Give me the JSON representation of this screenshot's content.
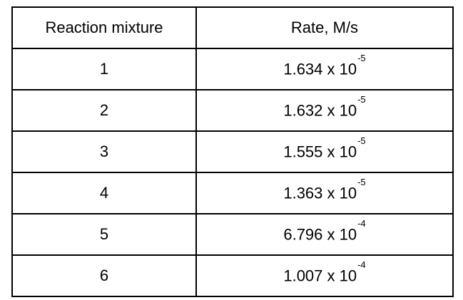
{
  "table": {
    "headers": {
      "mixture": "Reaction mixture",
      "rate": "Rate, M/s"
    },
    "rows": [
      {
        "mixture": "1",
        "mantissa": "1.634 x 10",
        "exponent": "-5"
      },
      {
        "mixture": "2",
        "mantissa": "1.632 x 10",
        "exponent": "-5"
      },
      {
        "mixture": "3",
        "mantissa": "1.555 x 10",
        "exponent": "-5"
      },
      {
        "mixture": "4",
        "mantissa": "1.363 x 10",
        "exponent": "-5"
      },
      {
        "mixture": "5",
        "mantissa": "6.796 x 10",
        "exponent": "-4"
      },
      {
        "mixture": "6",
        "mantissa": "1.007 x 10",
        "exponent": "-4"
      }
    ]
  }
}
